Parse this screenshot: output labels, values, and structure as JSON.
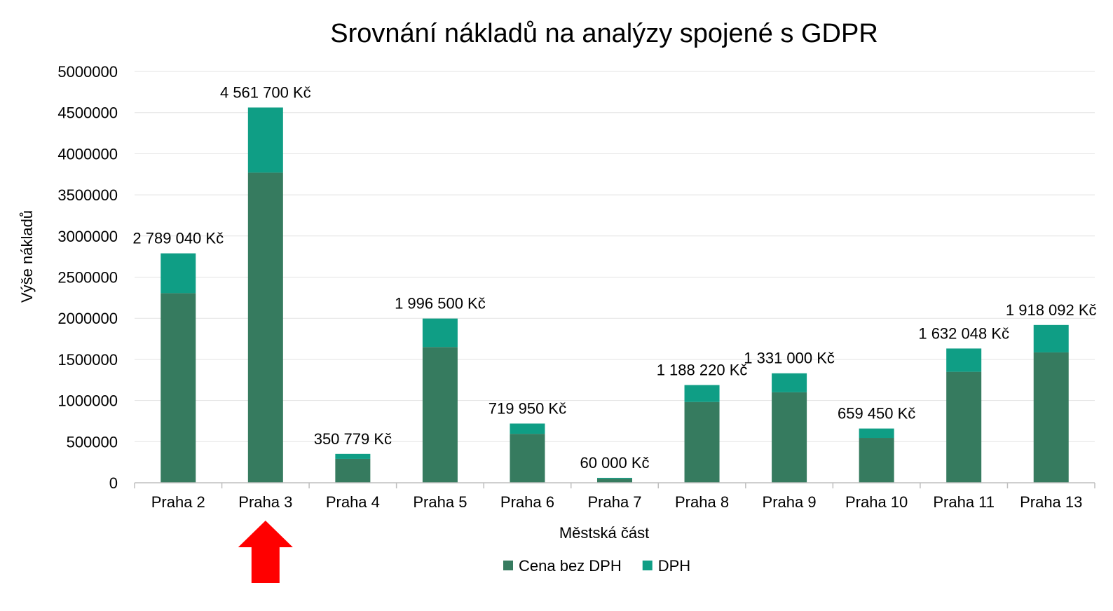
{
  "chart_data": {
    "type": "bar",
    "stacked": true,
    "title": "Srovnání nákladů na analýzy spojené s GDPR",
    "xlabel": "Městská část",
    "ylabel": "Výše nákladů",
    "ylim": [
      0,
      5000000
    ],
    "yticks": [
      "0",
      "500000",
      "1000000",
      "1500000",
      "2000000",
      "2500000",
      "3000000",
      "3500000",
      "4000000",
      "4500000",
      "5000000"
    ],
    "grid": true,
    "legend_position": "bottom",
    "categories": [
      "Praha 2",
      "Praha 3",
      "Praha 4",
      "Praha 5",
      "Praha 6",
      "Praha 7",
      "Praha 8",
      "Praha 9",
      "Praha 10",
      "Praha 11",
      "Praha 13"
    ],
    "series": [
      {
        "name": "Cena bez DPH",
        "color": "#367b5f",
        "values": [
          2305000,
          3770000,
          290000,
          1650000,
          595000,
          50000,
          982000,
          1100000,
          545000,
          1349000,
          1585000
        ]
      },
      {
        "name": "DPH",
        "color": "#0f9e85",
        "values": [
          484040,
          791700,
          60779,
          346500,
          124950,
          10000,
          206220,
          231000,
          114450,
          283048,
          333092
        ]
      }
    ],
    "totals": [
      2789040,
      4561700,
      350779,
      1996500,
      719950,
      60000,
      1188220,
      1331000,
      659450,
      1632048,
      1918092
    ],
    "total_labels": [
      "2 789 040 Kč",
      "4 561 700 Kč",
      "350 779 Kč",
      "1 996 500 Kč",
      "719 950 Kč",
      "60 000 Kč",
      "1 188 220 Kč",
      "1 331 000 Kč",
      "659 450 Kč",
      "1 632 048 Kč",
      "1 918 092 Kč"
    ],
    "annotation": {
      "type": "arrow",
      "color": "#ff0000",
      "target_category": "Praha 3"
    }
  }
}
